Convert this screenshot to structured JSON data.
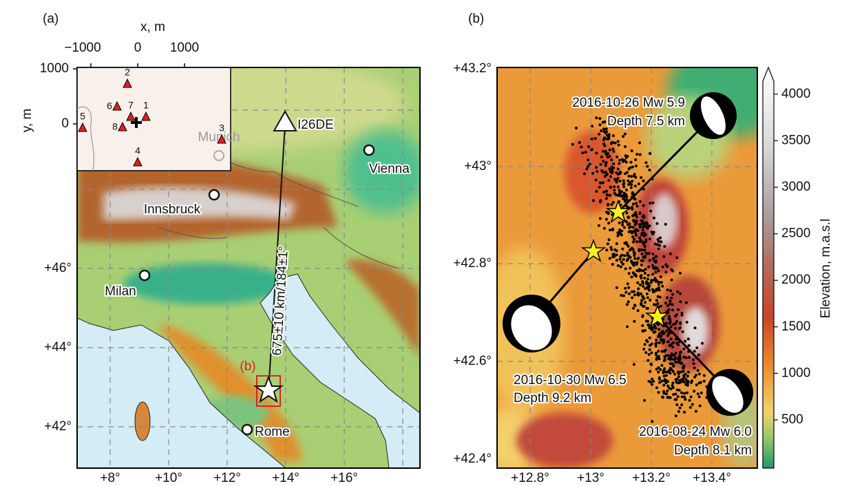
{
  "panel_a": {
    "label": "(a)",
    "inset": {
      "x_axis_label": "x, m",
      "y_axis_label": "y, m",
      "x_ticks": [
        "−1000",
        "0",
        "1000"
      ],
      "y_ticks": [
        "1000",
        "0"
      ],
      "stations": [
        "1",
        "2",
        "3",
        "4",
        "5",
        "6",
        "7",
        "8"
      ]
    },
    "lat_ticks": [
      "+46°",
      "+44°",
      "+42°"
    ],
    "lon_ticks": [
      "+8°",
      "+10°",
      "+12°",
      "+14°",
      "+16°"
    ],
    "cities": [
      "Vienna",
      "Innsbruck",
      "Milan",
      "Rome",
      "Munich"
    ],
    "station": "I26DE",
    "path_label": "675±10 km/184±1°",
    "region_label": "(b)"
  },
  "panel_b": {
    "label": "(b)",
    "lat_ticks": [
      "+43.2°",
      "+43°",
      "+42.8°",
      "+42.6°",
      "+42.4°"
    ],
    "lon_ticks": [
      "+12.8°",
      "+13°",
      "+13.2°",
      "+13.4°"
    ],
    "events": [
      {
        "title": "2016-10-26 Mw 5.9",
        "depth": "Depth 7.5 km"
      },
      {
        "title": "2016-10-30 Mw 6.5",
        "depth": "Depth 9.2 km"
      },
      {
        "title": "2016-08-24 Mw 6.0",
        "depth": "Depth 8.1 km"
      }
    ],
    "colorbar": {
      "title": "Elevation, m.a.s.l",
      "ticks": [
        "500",
        "1000",
        "1500",
        "2000",
        "2500",
        "3000",
        "3500",
        "4000"
      ]
    }
  }
}
